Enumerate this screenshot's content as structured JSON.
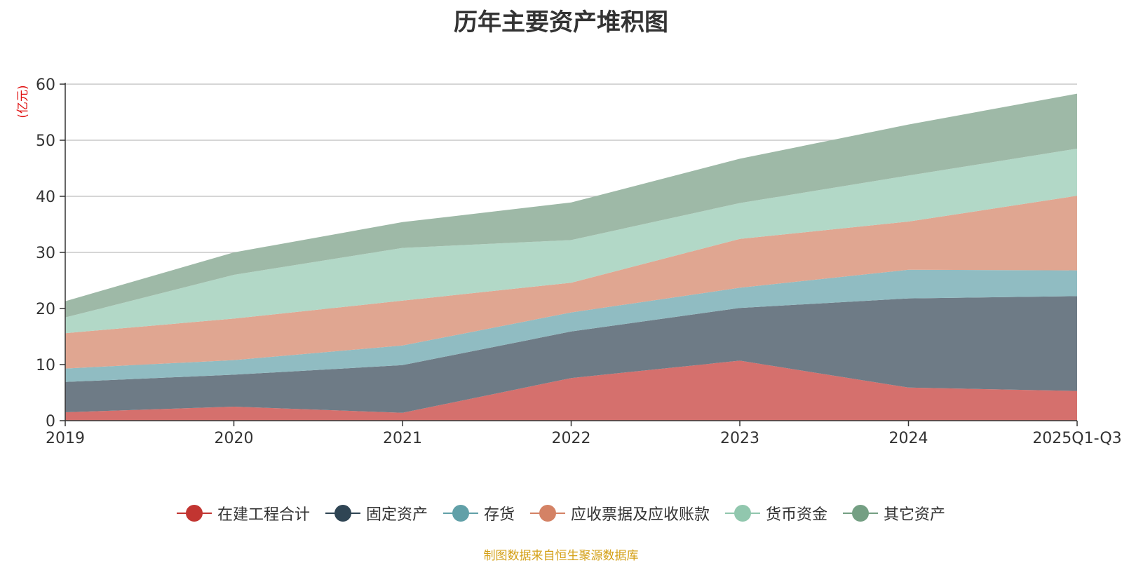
{
  "chart_data": {
    "type": "area",
    "stacked": true,
    "title": "历年主要资产堆积图",
    "ylabel": "(亿元)",
    "xlabel": "",
    "ylim": [
      0,
      60
    ],
    "yticks": [
      0,
      10,
      20,
      30,
      40,
      50,
      60
    ],
    "grid": true,
    "legend_position": "bottom",
    "categories": [
      "2019",
      "2020",
      "2021",
      "2022",
      "2023",
      "2024",
      "2025Q1-Q3"
    ],
    "series": [
      {
        "name": "在建工程合计",
        "color": "#c23531",
        "fill": "#d5706d",
        "values": [
          1.5,
          2.5,
          1.4,
          7.6,
          10.7,
          5.9,
          5.3
        ]
      },
      {
        "name": "固定资产",
        "color": "#2f4554",
        "fill": "#6e7b86",
        "values": [
          5.4,
          5.7,
          8.5,
          8.3,
          9.4,
          15.9,
          16.9
        ]
      },
      {
        "name": "存货",
        "color": "#61a0a8",
        "fill": "#90bcc2",
        "values": [
          2.4,
          2.6,
          3.5,
          3.4,
          3.6,
          5.1,
          4.6
        ]
      },
      {
        "name": "应收票据及应收账款",
        "color": "#d48265",
        "fill": "#e0a691",
        "values": [
          6.3,
          7.4,
          8.0,
          5.3,
          8.7,
          8.6,
          13.3
        ]
      },
      {
        "name": "货币资金",
        "color": "#91c7ae",
        "fill": "#b2d8c7",
        "values": [
          2.8,
          7.8,
          9.4,
          7.6,
          6.4,
          8.2,
          8.4
        ]
      },
      {
        "name": "其它资产",
        "color": "#749f83",
        "fill": "#9eb9a7",
        "values": [
          2.9,
          4.0,
          4.6,
          6.7,
          7.9,
          9.1,
          9.8
        ]
      }
    ],
    "source_note": "制图数据来自恒生聚源数据库"
  }
}
